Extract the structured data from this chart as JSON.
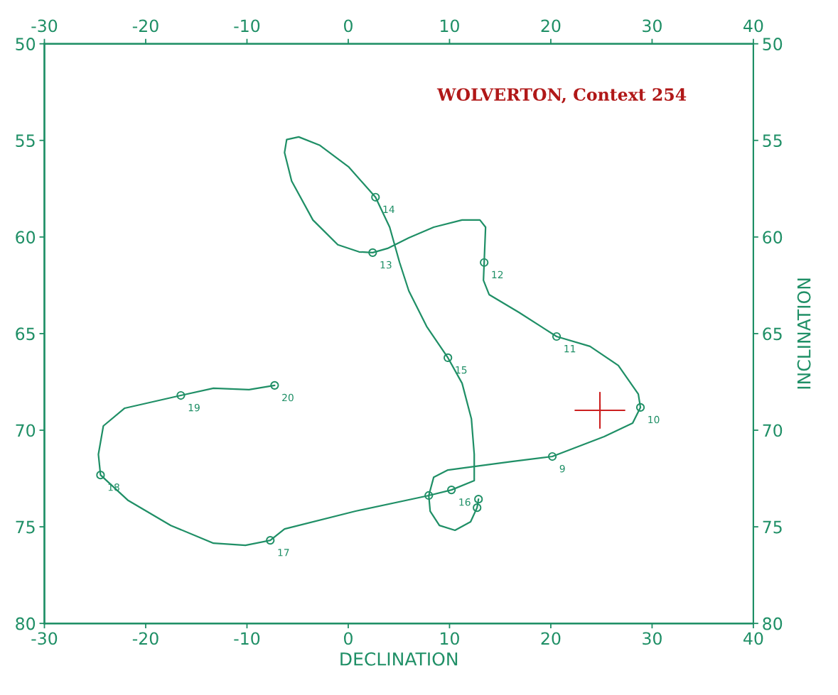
{
  "chart_data": {
    "type": "line",
    "title": "WOLVERTON, Context 254",
    "xlabel": "DECLINATION",
    "y2label": "INCLINATION",
    "xlim": [
      -30,
      40
    ],
    "xticks": [
      -30,
      -20,
      -10,
      0,
      10,
      20,
      30,
      40
    ],
    "x2lim": [
      -30,
      40
    ],
    "x2ticks": [
      -30,
      -20,
      -10,
      0,
      10,
      20,
      30,
      40
    ],
    "ylim": [
      80,
      50
    ],
    "yticks": [
      50,
      55,
      60,
      65,
      70,
      75,
      80
    ],
    "y2lim": [
      80,
      50
    ],
    "y2ticks": [
      50,
      55,
      60,
      65,
      70,
      75,
      80
    ],
    "grid": false,
    "legend": false,
    "series": [
      {
        "type": "line",
        "marker": "none",
        "color": "#1f8f66",
        "x": [
          12.86,
          12.72,
          12.08,
          10.54,
          9.0,
          8.09,
          7.95,
          8.44,
          9.84,
          12.44,
          16.15,
          20.15,
          25.27,
          28.08,
          28.85,
          28.64,
          26.67,
          23.87,
          20.57,
          16.85,
          13.91,
          13.35,
          13.42,
          13.56,
          13.0,
          11.24,
          8.44,
          5.98,
          3.88,
          2.41,
          1.07,
          -1.03,
          -3.49,
          -5.59,
          -6.29,
          -6.08,
          -4.89,
          -2.79,
          0.02,
          2.69,
          4.09,
          5.07,
          5.98,
          7.74,
          9.84,
          11.24,
          12.16,
          12.44,
          12.44,
          10.19,
          7.95,
          0.72,
          -6.29,
          -7.7,
          -10.15,
          -13.31,
          -17.52,
          -21.72,
          -24.46,
          -24.67,
          -24.18,
          -22.07,
          -16.53,
          -13.31,
          -9.8,
          -7.27
        ],
        "values": [
          73.57,
          74.01,
          74.74,
          75.18,
          74.93,
          74.19,
          73.38,
          72.43,
          72.06,
          71.88,
          71.62,
          71.36,
          70.33,
          69.63,
          68.82,
          68.13,
          66.65,
          65.66,
          65.15,
          63.9,
          62.98,
          62.24,
          61.32,
          59.49,
          59.12,
          59.12,
          59.49,
          60.04,
          60.59,
          60.81,
          60.77,
          60.4,
          59.12,
          57.1,
          55.63,
          54.96,
          54.82,
          55.26,
          56.36,
          57.94,
          59.49,
          61.32,
          62.79,
          64.63,
          66.25,
          67.57,
          69.41,
          71.25,
          72.61,
          73.09,
          73.38,
          74.19,
          75.11,
          75.7,
          75.96,
          75.85,
          74.93,
          73.64,
          72.32,
          71.25,
          69.78,
          68.86,
          68.2,
          67.83,
          67.9,
          67.68
        ]
      },
      {
        "type": "scatter",
        "marker": "circle",
        "color": "#1f8f66",
        "x": [
          12.86,
          12.72,
          7.95,
          20.15,
          28.85,
          20.57,
          13.42,
          2.41,
          2.69,
          9.84,
          10.19,
          -7.7,
          -24.46,
          -16.53,
          -7.27
        ],
        "values": [
          73.57,
          74.01,
          73.38,
          71.36,
          68.82,
          65.15,
          61.32,
          60.81,
          57.94,
          66.25,
          73.09,
          75.7,
          72.32,
          68.2,
          67.68
        ]
      },
      {
        "type": "scatter",
        "marker": "cross",
        "color": "#cc2020",
        "x": [
          24.85
        ],
        "values": [
          68.97
        ],
        "errors": [
          0.95
        ],
        "xerrors": [
          2.5
        ]
      }
    ],
    "annotations": [
      {
        "text": "9",
        "x": 20.15,
        "y": 71.36
      },
      {
        "text": "10",
        "x": 28.85,
        "y": 68.82
      },
      {
        "text": "11",
        "x": 20.57,
        "y": 65.15
      },
      {
        "text": "12",
        "x": 13.42,
        "y": 61.32
      },
      {
        "text": "13",
        "x": 2.41,
        "y": 60.81
      },
      {
        "text": "14",
        "x": 2.69,
        "y": 57.94
      },
      {
        "text": "15",
        "x": 9.84,
        "y": 66.25
      },
      {
        "text": "16",
        "x": 10.19,
        "y": 73.09
      },
      {
        "text": "17",
        "x": -7.7,
        "y": 75.7
      },
      {
        "text": "18",
        "x": -24.46,
        "y": 72.32
      },
      {
        "text": "19",
        "x": -16.53,
        "y": 68.2
      },
      {
        "text": "20",
        "x": -7.27,
        "y": 67.68
      }
    ]
  }
}
